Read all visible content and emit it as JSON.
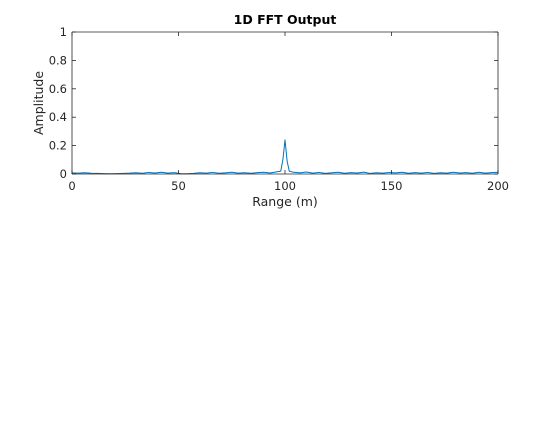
{
  "chart_data": {
    "type": "line",
    "title": "1D FFT Output",
    "xlabel": "Range (m)",
    "ylabel": "Amplitude",
    "xlim": [
      0,
      200
    ],
    "ylim": [
      0,
      1
    ],
    "xticks": [
      0,
      50,
      100,
      150,
      200
    ],
    "yticks": [
      0,
      0.2,
      0.4,
      0.6,
      0.8,
      1
    ],
    "xtick_labels": [
      "0",
      "50",
      "100",
      "150",
      "200"
    ],
    "ytick_labels": [
      "0",
      "0.2",
      "0.4",
      "0.6",
      "0.8",
      "1"
    ],
    "grid": false,
    "box": true,
    "series": [
      {
        "color": "#0072BD",
        "x": [
          0,
          3,
          6,
          9,
          12,
          15,
          18,
          21,
          24,
          27,
          30,
          33,
          36,
          39,
          42,
          45,
          48,
          51,
          54,
          57,
          60,
          63,
          66,
          69,
          72,
          75,
          78,
          81,
          84,
          87,
          90,
          93,
          96,
          98,
          99,
          100,
          101,
          102,
          104,
          107,
          110,
          113,
          116,
          119,
          122,
          125,
          128,
          131,
          134,
          137,
          140,
          143,
          146,
          149,
          152,
          155,
          158,
          161,
          164,
          167,
          170,
          173,
          176,
          179,
          182,
          185,
          188,
          191,
          194,
          197,
          200
        ],
        "y": [
          0.008,
          0.006,
          0.009,
          0.005,
          0.004,
          0.003,
          0.002,
          0.003,
          0.004,
          0.006,
          0.009,
          0.005,
          0.011,
          0.007,
          0.012,
          0.006,
          0.01,
          0.003,
          0.002,
          0.004,
          0.009,
          0.006,
          0.011,
          0.005,
          0.008,
          0.012,
          0.006,
          0.009,
          0.005,
          0.01,
          0.012,
          0.007,
          0.015,
          0.02,
          0.1,
          0.24,
          0.09,
          0.02,
          0.012,
          0.008,
          0.014,
          0.006,
          0.011,
          0.004,
          0.009,
          0.012,
          0.005,
          0.01,
          0.007,
          0.013,
          0.004,
          0.009,
          0.006,
          0.011,
          0.008,
          0.012,
          0.005,
          0.01,
          0.006,
          0.011,
          0.004,
          0.009,
          0.006,
          0.012,
          0.007,
          0.01,
          0.005,
          0.012,
          0.006,
          0.01,
          0.012
        ]
      }
    ]
  }
}
